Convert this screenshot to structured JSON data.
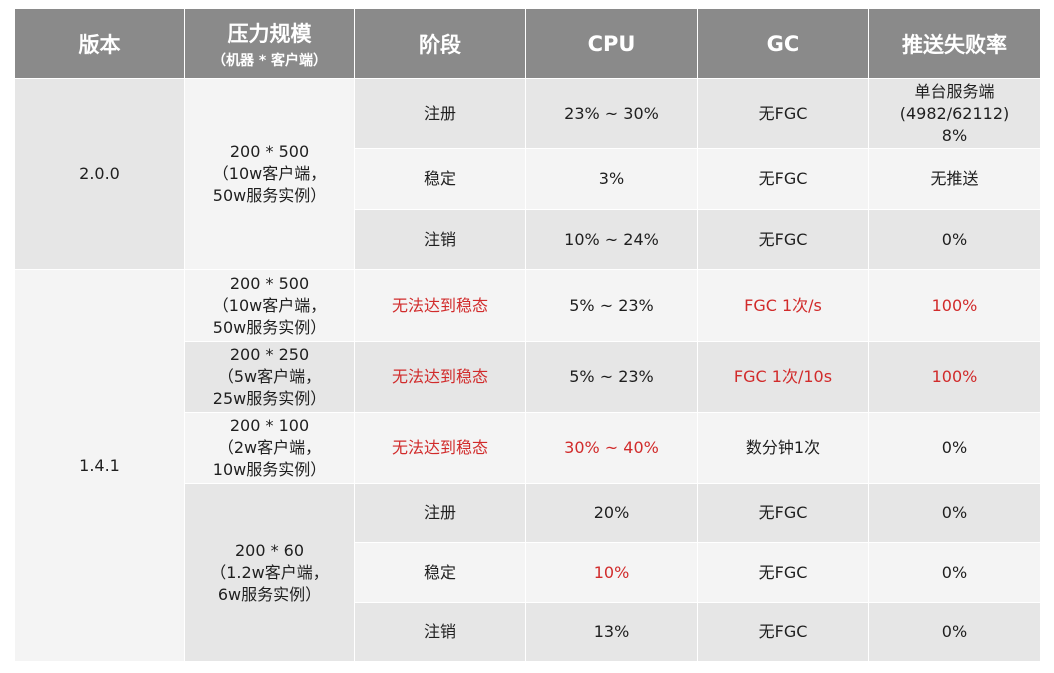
{
  "header": {
    "version": "版本",
    "scale": "压力规模",
    "scale_sub": "（机器 * 客户端）",
    "stage": "阶段",
    "cpu": "CPU",
    "gc": "GC",
    "fail_rate": "推送失败率"
  },
  "groups": [
    {
      "version": "2.0.0",
      "scale": "200 * 500\n（10w客户端，\n50w服务实例）",
      "rows": [
        {
          "stage": "注册",
          "cpu": "23% ~ 30%",
          "gc": "无FGC",
          "fail": "单台服务端\n(4982/62112)\n8%"
        },
        {
          "stage": "稳定",
          "cpu": "3%",
          "gc": "无FGC",
          "fail": "无推送"
        },
        {
          "stage": "注销",
          "cpu": "10% ~ 24%",
          "gc": "无FGC",
          "fail": "0%"
        }
      ]
    },
    {
      "version": "1.4.1",
      "rows": [
        {
          "scale": "200 * 500\n（10w客户端，\n50w服务实例）",
          "stage": "无法达到稳态",
          "cpu": "5% ~ 23%",
          "gc": "FGC 1次/s",
          "fail": "100%"
        },
        {
          "scale": "200 * 250\n（5w客户端，\n25w服务实例）",
          "stage": "无法达到稳态",
          "cpu": "5% ~ 23%",
          "gc": "FGC 1次/10s",
          "fail": "100%"
        },
        {
          "scale": "200 * 100\n（2w客户端，\n10w服务实例）",
          "stage": "无法达到稳态",
          "cpu": "30% ~ 40%",
          "gc": "数分钟1次",
          "fail": "0%"
        }
      ],
      "sub_group": {
        "scale": "200 * 60\n（1.2w客户端，\n6w服务实例）",
        "rows": [
          {
            "stage": "注册",
            "cpu": "20%",
            "gc": "无FGC",
            "fail": "0%"
          },
          {
            "stage": "稳定",
            "cpu": "10%",
            "gc": "无FGC",
            "fail": "0%"
          },
          {
            "stage": "注销",
            "cpu": "13%",
            "gc": "无FGC",
            "fail": "0%"
          }
        ]
      }
    }
  ],
  "colors": {
    "header_bg": "#8a8a8a",
    "row_dark": "#e6e6e6",
    "row_light": "#f4f4f4",
    "highlight": "#d12b2b"
  }
}
